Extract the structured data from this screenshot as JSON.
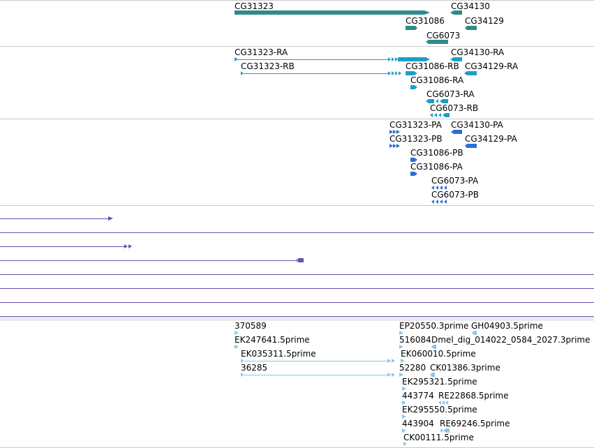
{
  "track_genes": {
    "labels": [
      "CG31323",
      "CG34130",
      "CG31086",
      "CG34129",
      "CG6073"
    ]
  },
  "track_transcripts": {
    "labels": [
      "CG31323-RA",
      "CG34130-RA",
      "CG31323-RB",
      "CG31086-RB",
      "CG34129-RA",
      "CG31086-RA",
      "CG6073-RA",
      "CG6073-RB"
    ]
  },
  "track_proteins": {
    "labels": [
      "CG31323-PA",
      "CG34130-PA",
      "CG31323-PB",
      "CG34129-PA",
      "CG31086-PB",
      "CG31086-PA",
      "CG6073-PA",
      "CG6073-PB"
    ]
  },
  "track_evidence": {
    "labels": [
      "370589",
      "EP20550.3prime",
      "GH04903.5prime",
      "EK247641.5prime",
      "516084",
      "Dmel_dig_014022_0584_2027.3prime",
      "EK035311.5prime",
      "EK060010.5prime",
      "36285",
      "52280",
      "CK01386.3prime",
      "EK295321.5prime",
      "443774",
      "RE22868.5prime",
      "EK295550.5prime",
      "443904",
      "RE69246.5prime",
      "CK00111.5prime"
    ]
  },
  "colors": {
    "gene": "#2e8b8b",
    "transcript": "#1aa0c6",
    "protein": "#2b6fd6",
    "purple_track": "#6a4fb0",
    "evidence": "#8ec6e6"
  }
}
